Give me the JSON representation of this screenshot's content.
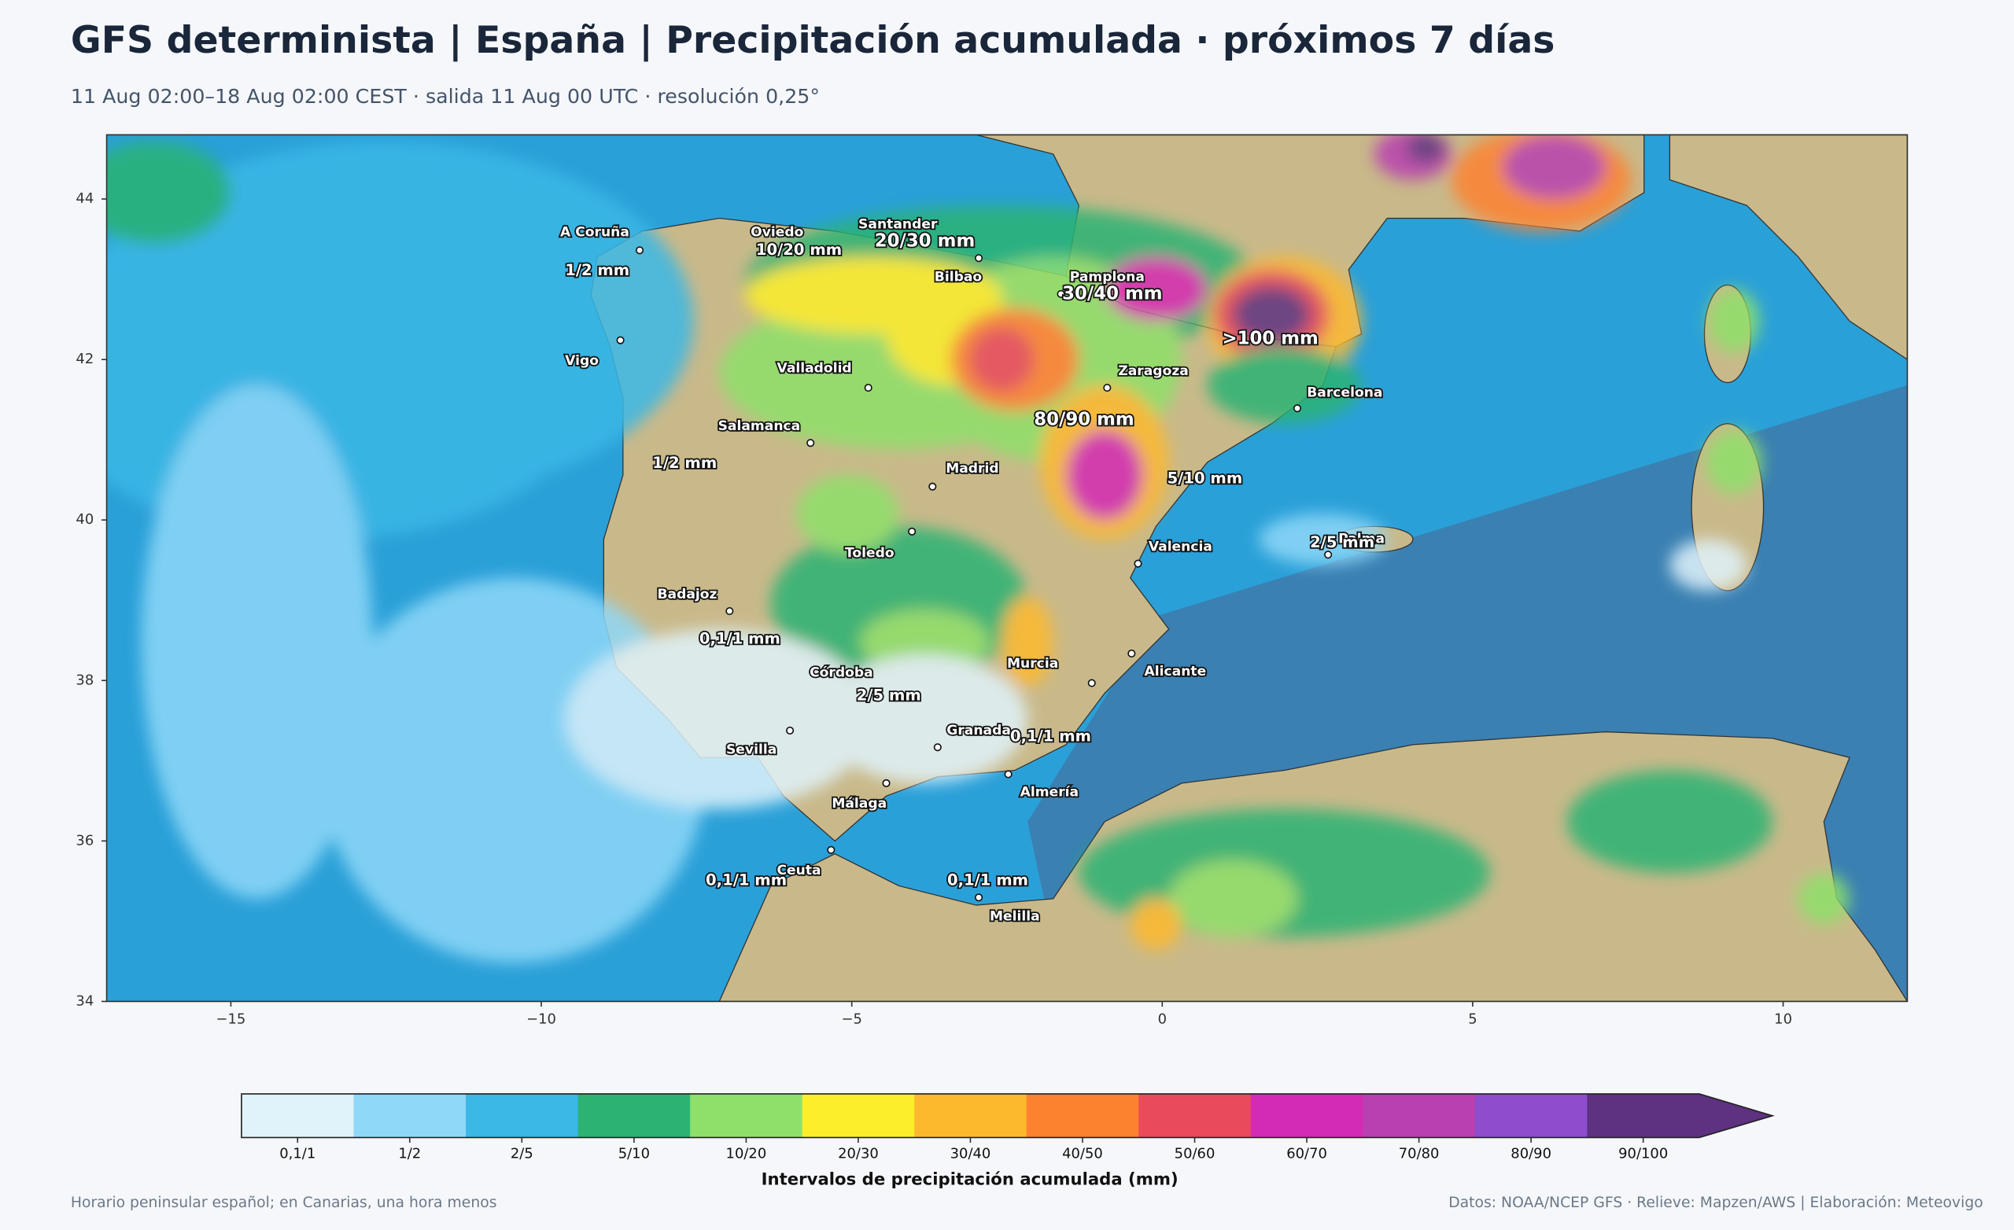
{
  "header": {
    "title": "GFS determinista | España | Precipitación acumulada · próximos 7 días",
    "subtitle": "11 Aug 02:00–18 Aug 02:00 CEST · salida 11 Aug 00 UTC · resolución 0,25°"
  },
  "map": {
    "xlim": [
      -17,
      12
    ],
    "ylim": [
      34,
      44.8
    ],
    "xticks": [
      {
        "value": -15,
        "label": "−15"
      },
      {
        "value": -10,
        "label": "−10"
      },
      {
        "value": -5,
        "label": "−5"
      },
      0,
      5,
      10
    ],
    "yticks": [
      34,
      36,
      38,
      40,
      42,
      44
    ],
    "cities": [
      "A Coruña",
      "Oviedo",
      "Santander",
      "Bilbao",
      "Pamplona",
      "Vigo",
      "Valladolid",
      "Zaragoza",
      "Barcelona",
      "Salamanca",
      "Madrid",
      "Toledo",
      "Valencia",
      "Palma",
      "Badajoz",
      "Córdoba",
      "Murcia",
      "Alicante",
      "Granada",
      "Sevilla",
      "Málaga",
      "Almería",
      "Ceuta",
      "Melilla"
    ],
    "amount_labels": [
      "1/2 mm",
      "10/20 mm",
      "20/30 mm",
      "30/40 mm",
      ">100 mm",
      "1/2 mm",
      "80/90 mm",
      "5/10 mm",
      "2/5 mm",
      "0,1/1 mm",
      "2/5 mm",
      "0,1/1 mm",
      "0,1/1 mm",
      "0,1/1 mm"
    ]
  },
  "colorbar": {
    "label": "Intervalos de precipitación acumulada (mm)",
    "bins": [
      "0,1/1",
      "1/2",
      "2/5",
      "5/10",
      "10/20",
      "20/30",
      "30/40",
      "40/50",
      "50/60",
      "60/70",
      "70/80",
      "80/90",
      "90/100"
    ],
    "colors": [
      "#e0f3fb",
      "#8fd8f8",
      "#3bb8e6",
      "#2cb373",
      "#8ee06a",
      "#fbee2b",
      "#fdb92e",
      "#fd8230",
      "#e94a5c",
      "#d42bb4",
      "#b840b0",
      "#8e4dcc",
      "#5e3181"
    ]
  },
  "footer": {
    "left": "Horario peninsular español; en Canarias, una hora menos",
    "right": "Datos: NOAA/NCEP GFS · Relieve: Mapzen/AWS | Elaboración: Meteovigo"
  }
}
